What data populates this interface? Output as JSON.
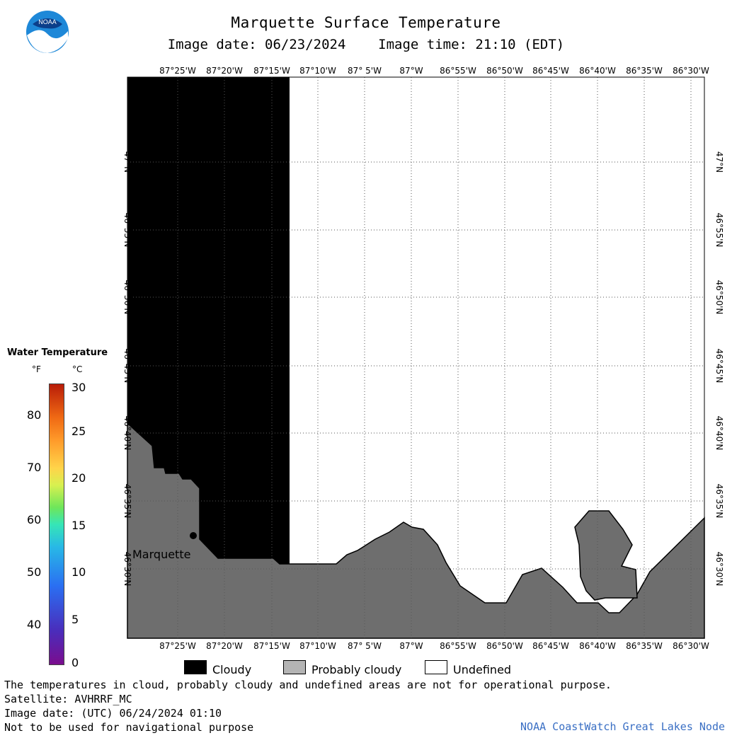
{
  "header": {
    "title": "Marquette Surface Temperature",
    "subtitle": "Image date: 06/23/2024    Image time: 21:10 (EDT)",
    "logo_text": "NOAA"
  },
  "map": {
    "lon_labels": [
      "87°25'W",
      "87°20'W",
      "87°15'W",
      "87°10'W",
      "87° 5'W",
      "87°W",
      "86°55'W",
      "86°50'W",
      "86°45'W",
      "86°40'W",
      "86°35'W",
      "86°30'W"
    ],
    "lat_labels": [
      "47°N",
      "46°55'N",
      "46°50'N",
      "46°45'N",
      "46°40'N",
      "46°35'N",
      "46°30'N"
    ],
    "city_label": "Marquette",
    "colors": {
      "cloudy": "#000000",
      "land": "#6e6e6e",
      "undefined": "#ffffff",
      "grid": "#555555"
    }
  },
  "legend": {
    "title": "Water Temperature",
    "unit_f": "°F",
    "unit_c": "°C",
    "f_ticks": [
      "80",
      "70",
      "60",
      "50",
      "40"
    ],
    "c_ticks": [
      "30",
      "25",
      "20",
      "15",
      "10",
      "5",
      "0"
    ],
    "categories": [
      {
        "label": "Cloudy",
        "color": "#000000"
      },
      {
        "label": "Probably cloudy",
        "color": "#b4b4b4"
      },
      {
        "label": "Undefined",
        "color": "#ffffff"
      }
    ]
  },
  "footer": {
    "line1": "The temperatures in cloud, probably cloudy and undefined areas are not for operational purpose.",
    "line2": "Satellite: AVHRRF_MC",
    "line3": "Image date: (UTC) 06/24/2024  01:10",
    "line4": "Not to be used for navigational purpose",
    "credit": "NOAA CoastWatch Great Lakes Node"
  }
}
